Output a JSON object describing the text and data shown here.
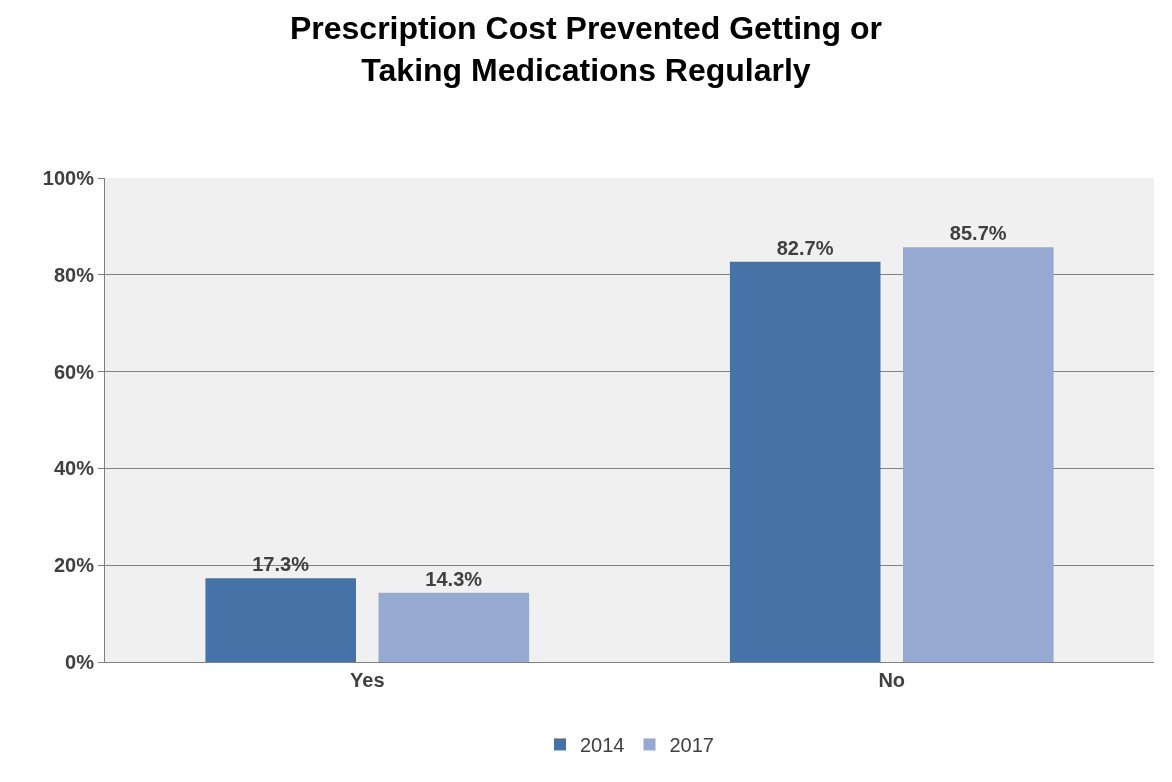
{
  "chart_data": {
    "type": "bar",
    "title": "Prescription Cost Prevented Getting or Taking Medications Regularly",
    "categories": [
      "Yes",
      "No"
    ],
    "series": [
      {
        "name": "2014",
        "color": "#4573a7",
        "values": [
          17.3,
          82.7
        ],
        "value_labels": [
          "17.3%",
          "82.7%"
        ]
      },
      {
        "name": "2017",
        "color": "#95a9d1",
        "values": [
          14.3,
          85.7
        ],
        "value_labels": [
          "14.3%",
          "85.7%"
        ]
      }
    ],
    "ylim": [
      0,
      100
    ],
    "yticks": [
      {
        "value": 0,
        "label": "0%"
      },
      {
        "value": 20,
        "label": "20%"
      },
      {
        "value": 40,
        "label": "40%"
      },
      {
        "value": 60,
        "label": "60%"
      },
      {
        "value": 80,
        "label": "80%"
      },
      {
        "value": 100,
        "label": "100%"
      }
    ],
    "grid": "y",
    "legend": "bottom"
  }
}
